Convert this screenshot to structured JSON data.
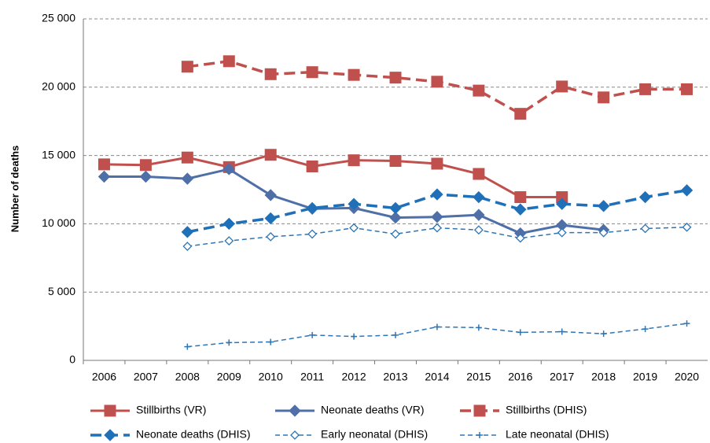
{
  "chart_data": {
    "type": "line",
    "ylabel": "Number of deaths",
    "categories": [
      "2006",
      "2007",
      "2008",
      "2009",
      "2010",
      "2011",
      "2012",
      "2013",
      "2014",
      "2015",
      "2016",
      "2017",
      "2018",
      "2019",
      "2020"
    ],
    "ylim": [
      0,
      25000
    ],
    "yticks": [
      0,
      {
        "value": 5000,
        "label": "5 000"
      },
      {
        "value": 10000,
        "label": "10 000"
      },
      {
        "value": 15000,
        "label": "15 000"
      },
      {
        "value": 20000,
        "label": "20 000"
      },
      {
        "value": 25000,
        "label": "25 000"
      }
    ],
    "grid": true,
    "series": [
      {
        "name": "Stillbirths (VR)",
        "color": "#c0504d",
        "dashed": false,
        "marker": "square",
        "width": 3,
        "values": [
          14350,
          14300,
          14850,
          14150,
          15050,
          14200,
          14650,
          14600,
          14400,
          13650,
          11950,
          11950,
          null,
          null,
          null
        ]
      },
      {
        "name": "Neonate deaths (VR)",
        "color": "#4f6fa8",
        "dashed": false,
        "marker": "diamond",
        "width": 3,
        "values": [
          13450,
          13450,
          13300,
          14000,
          12100,
          11100,
          11150,
          10450,
          10500,
          10650,
          9300,
          9900,
          9550,
          null,
          null
        ]
      },
      {
        "name": "Stillbirths (DHIS)",
        "color": "#c0504d",
        "dashed": true,
        "marker": "square",
        "width": 3.5,
        "values": [
          null,
          null,
          21500,
          21900,
          20950,
          21100,
          20900,
          20700,
          20400,
          19750,
          18050,
          20050,
          19250,
          19850,
          19850
        ]
      },
      {
        "name": "Neonate deaths (DHIS)",
        "color": "#1f70b8",
        "dashed": true,
        "marker": "diamond",
        "width": 3.5,
        "values": [
          null,
          null,
          9400,
          10000,
          10400,
          11150,
          11450,
          11150,
          12150,
          11950,
          11050,
          11450,
          11300,
          11950,
          12450
        ]
      },
      {
        "name": "Early neonatal (DHIS)",
        "color": "#2e75b6",
        "dashed": true,
        "marker": "open-diamond",
        "width": 1.5,
        "values": [
          null,
          null,
          8350,
          8750,
          9050,
          9250,
          9700,
          9250,
          9700,
          9550,
          8950,
          9350,
          9350,
          9650,
          9750
        ]
      },
      {
        "name": "Late neonatal (DHIS)",
        "color": "#2e75b6",
        "dashed": true,
        "marker": "plus",
        "width": 1.5,
        "values": [
          null,
          null,
          1000,
          1300,
          1350,
          1850,
          1750,
          1850,
          2450,
          2400,
          2050,
          2100,
          1950,
          2300,
          2700
        ]
      }
    ]
  }
}
